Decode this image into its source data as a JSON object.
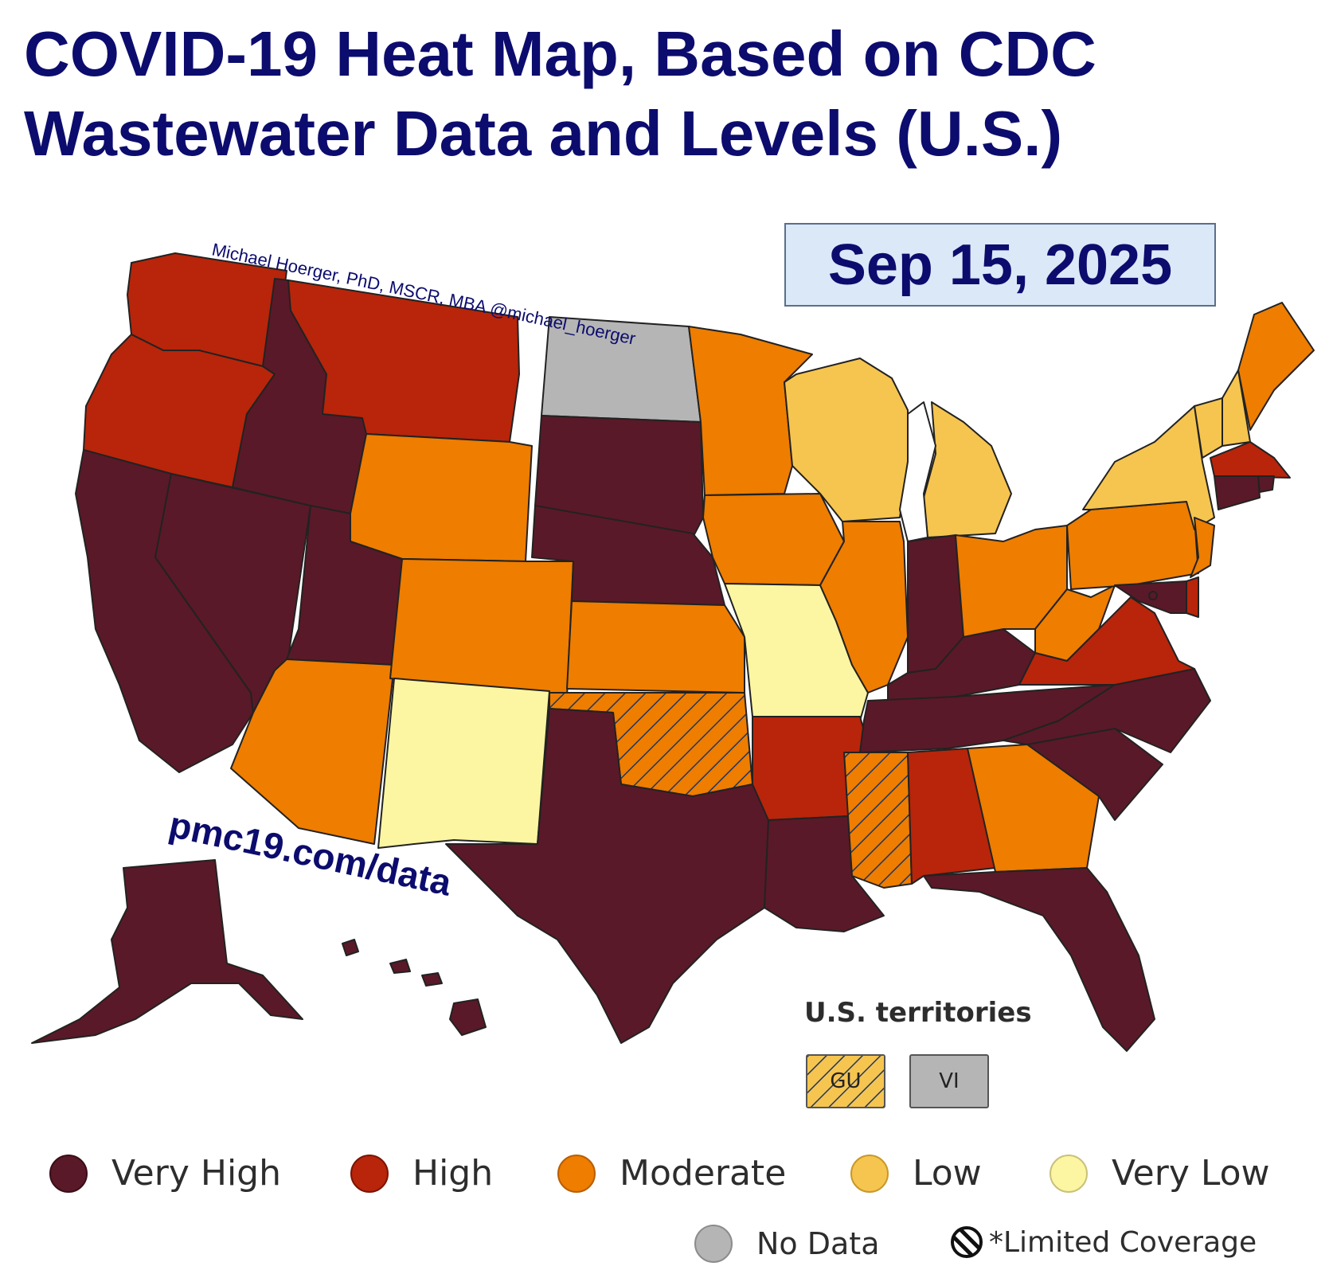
{
  "title": {
    "line1": "COVID-19 Heat Map, Based on CDC",
    "line2": "Wastewater Data and Levels (U.S.)"
  },
  "date": "Sep 15, 2025",
  "author_credit": "Michael Hoerger, PhD, MSCR, MBA  @michael_hoerger",
  "website": "pmc19.com/data",
  "colors": {
    "very_high": "#5a1928",
    "high": "#b8250a",
    "moderate": "#ee7d00",
    "low": "#f6c54f",
    "very_low": "#fcf6a2",
    "no_data": "#b5b5b5",
    "title_navy": "#0c0c6e"
  },
  "states": [
    {
      "name": "WA",
      "level": "High"
    },
    {
      "name": "OR",
      "level": "High"
    },
    {
      "name": "CA",
      "level": "Very High"
    },
    {
      "name": "NV",
      "level": "Very High"
    },
    {
      "name": "ID",
      "level": "Very High"
    },
    {
      "name": "MT",
      "level": "High"
    },
    {
      "name": "WY",
      "level": "Moderate"
    },
    {
      "name": "UT",
      "level": "Very High"
    },
    {
      "name": "AZ",
      "level": "Moderate"
    },
    {
      "name": "CO",
      "level": "Moderate"
    },
    {
      "name": "NM",
      "level": "Very Low"
    },
    {
      "name": "ND",
      "level": "No Data"
    },
    {
      "name": "SD",
      "level": "Very High"
    },
    {
      "name": "NE",
      "level": "Very High"
    },
    {
      "name": "KS",
      "level": "Moderate"
    },
    {
      "name": "OK",
      "level": "Moderate",
      "limited_coverage": true
    },
    {
      "name": "TX",
      "level": "Very High"
    },
    {
      "name": "MN",
      "level": "Moderate"
    },
    {
      "name": "IA",
      "level": "Moderate"
    },
    {
      "name": "MO",
      "level": "Very Low"
    },
    {
      "name": "AR",
      "level": "High"
    },
    {
      "name": "LA",
      "level": "Very High"
    },
    {
      "name": "WI",
      "level": "Low"
    },
    {
      "name": "MI",
      "level": "Low"
    },
    {
      "name": "IL",
      "level": "Moderate"
    },
    {
      "name": "IN",
      "level": "Very High"
    },
    {
      "name": "KY",
      "level": "Very High"
    },
    {
      "name": "TN",
      "level": "Very High"
    },
    {
      "name": "MS",
      "level": "Moderate",
      "limited_coverage": true
    },
    {
      "name": "AL",
      "level": "High"
    },
    {
      "name": "GA",
      "level": "Moderate"
    },
    {
      "name": "FL",
      "level": "Very High"
    },
    {
      "name": "SC",
      "level": "Very High"
    },
    {
      "name": "NC",
      "level": "Very High"
    },
    {
      "name": "OH",
      "level": "Moderate"
    },
    {
      "name": "WV",
      "level": "Moderate"
    },
    {
      "name": "VA",
      "level": "High"
    },
    {
      "name": "PA",
      "level": "Moderate"
    },
    {
      "name": "NY",
      "level": "Low"
    },
    {
      "name": "VT",
      "level": "Low"
    },
    {
      "name": "NH",
      "level": "Low"
    },
    {
      "name": "ME",
      "level": "Moderate"
    },
    {
      "name": "MA",
      "level": "High"
    },
    {
      "name": "RI",
      "level": "Very High"
    },
    {
      "name": "CT",
      "level": "Very High"
    },
    {
      "name": "NJ",
      "level": "Moderate"
    },
    {
      "name": "DE",
      "level": "High"
    },
    {
      "name": "MD",
      "level": "Very High"
    },
    {
      "name": "DC",
      "level": "Very High"
    },
    {
      "name": "AK",
      "level": "Very High"
    },
    {
      "name": "HI",
      "level": "Very High"
    }
  ],
  "territories": {
    "title": "U.S. territories",
    "items": [
      {
        "label": "GU",
        "level": "Low",
        "limited_coverage": true
      },
      {
        "label": "VI",
        "level": "No Data"
      }
    ]
  },
  "legend": {
    "items": [
      {
        "label": "Very High",
        "color": "#5a1928"
      },
      {
        "label": "High",
        "color": "#b8250a"
      },
      {
        "label": "Moderate",
        "color": "#ee7d00"
      },
      {
        "label": "Low",
        "color": "#f6c54f"
      },
      {
        "label": "Very Low",
        "color": "#fcf6a2"
      }
    ],
    "no_data": "No Data",
    "limited_coverage": "*Limited Coverage"
  }
}
